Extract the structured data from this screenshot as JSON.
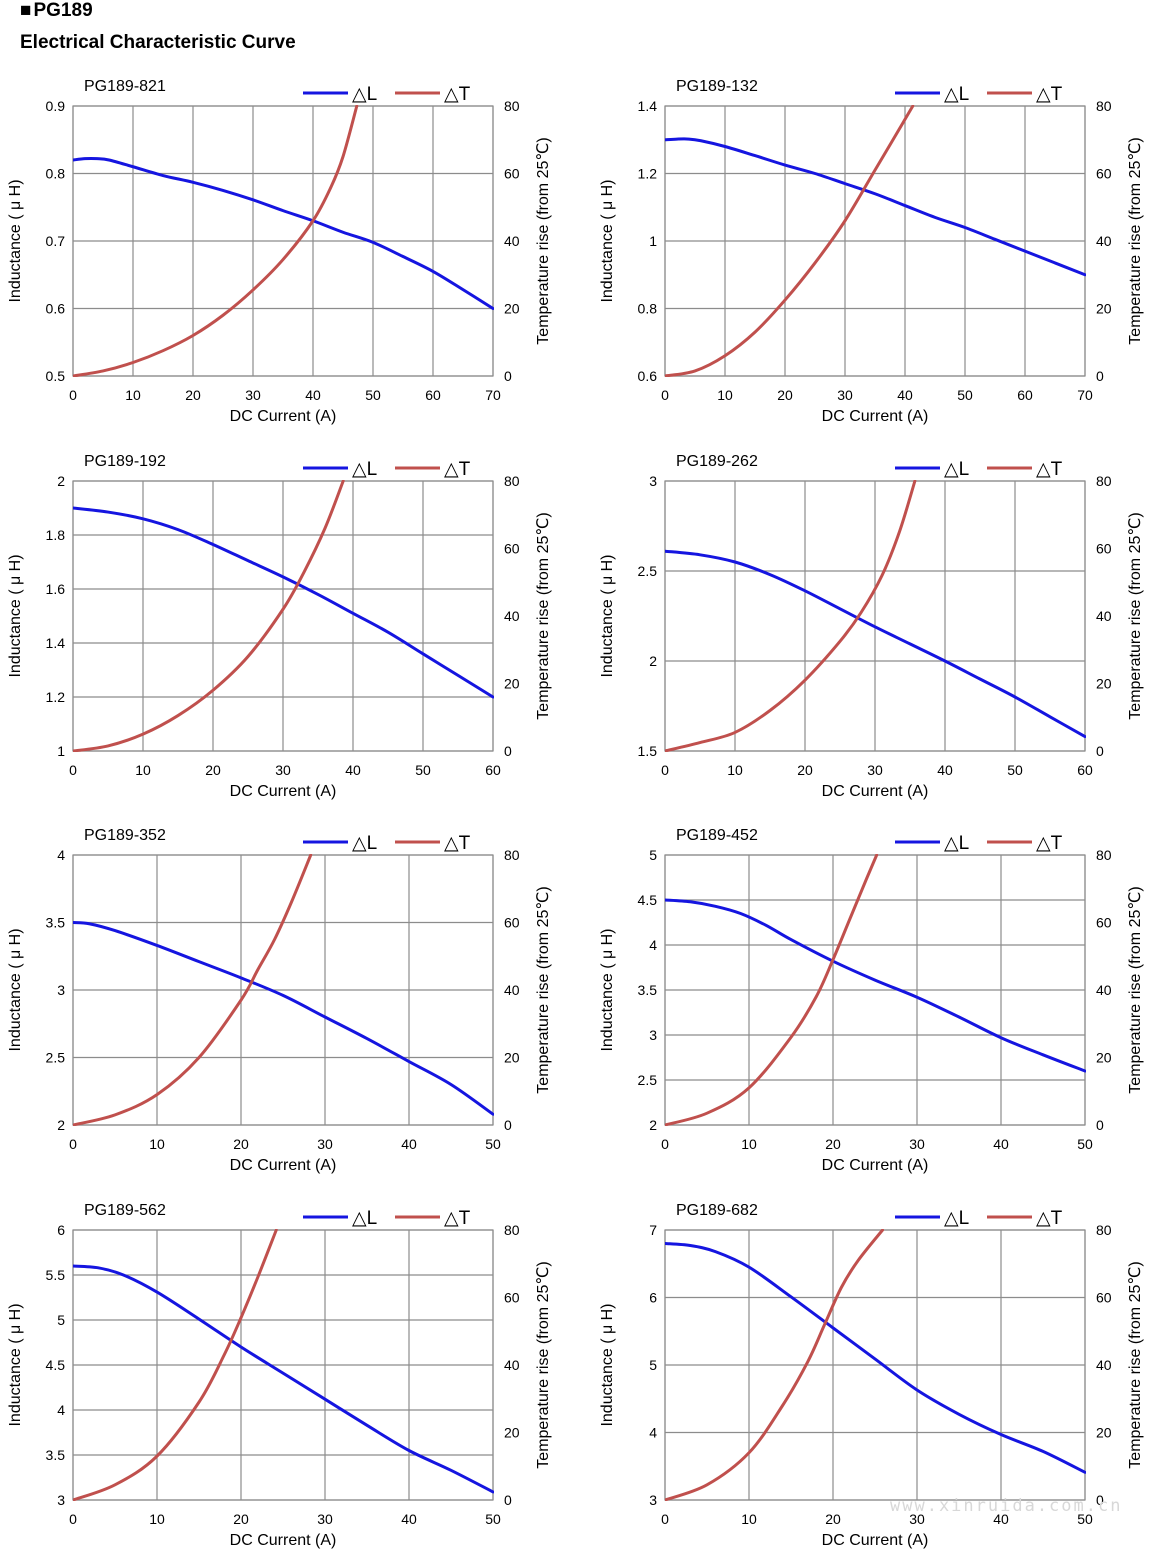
{
  "header": {
    "series_marker": "■",
    "series": "PG189",
    "subtitle": "Electrical Characteristic Curve"
  },
  "watermark": "www.xinruida.com.cn",
  "style": {
    "inductance_color": "#1515e0",
    "temperature_color": "#c0504d",
    "grid_color": "#8c8c8c"
  },
  "chart_data": [
    {
      "type": "line",
      "title": "PG189-821",
      "xlabel": "DC Current (A)",
      "ylabel": "Inductance ( μ H)",
      "y2label": "Temperature rise (from 25℃)",
      "legend": [
        "△L",
        "△T"
      ],
      "xlim": [
        0,
        70
      ],
      "xticks": [
        0,
        10,
        20,
        30,
        40,
        50,
        60,
        70
      ],
      "ylim": [
        0.5,
        0.9
      ],
      "yticks": [
        "0.5",
        "0.6",
        "0.7",
        "0.8",
        "0.9"
      ],
      "y2lim": [
        0,
        80
      ],
      "y2ticks": [
        "0",
        "20",
        "40",
        "60",
        "80"
      ],
      "series": [
        {
          "name": "△L",
          "axis": "left",
          "x": [
            0,
            2,
            4,
            6,
            10,
            15,
            20,
            25,
            30,
            35,
            40,
            45,
            50,
            55,
            60,
            65,
            70
          ],
          "y": [
            0.82,
            0.822,
            0.822,
            0.82,
            0.81,
            0.797,
            0.787,
            0.775,
            0.761,
            0.745,
            0.73,
            0.713,
            0.698,
            0.677,
            0.655,
            0.628,
            0.6
          ]
        },
        {
          "name": "△T",
          "axis": "right",
          "x": [
            0,
            5,
            10,
            15,
            20,
            25,
            30,
            35,
            40,
            43,
            45,
            47.3
          ],
          "y": [
            0,
            1.5,
            4,
            7.5,
            12,
            18,
            25.5,
            34.5,
            46,
            56,
            65,
            80
          ]
        }
      ]
    },
    {
      "type": "line",
      "title": "PG189-132",
      "xlabel": "DC Current (A)",
      "ylabel": "Inductance ( μ H)",
      "y2label": "Temperature rise (from 25℃)",
      "legend": [
        "△L",
        "△T"
      ],
      "xlim": [
        0,
        70
      ],
      "xticks": [
        0,
        10,
        20,
        30,
        40,
        50,
        60,
        70
      ],
      "ylim": [
        0.6,
        1.4
      ],
      "yticks": [
        "0.6",
        "0.8",
        "1",
        "1.2",
        "1.4"
      ],
      "y2lim": [
        0,
        80
      ],
      "y2ticks": [
        "0",
        "20",
        "40",
        "60",
        "80"
      ],
      "series": [
        {
          "name": "△L",
          "axis": "left",
          "x": [
            0,
            2,
            4,
            6,
            10,
            15,
            20,
            25,
            30,
            35,
            40,
            45,
            50,
            55,
            60,
            65,
            70
          ],
          "y": [
            1.3,
            1.302,
            1.302,
            1.297,
            1.28,
            1.253,
            1.225,
            1.2,
            1.17,
            1.14,
            1.105,
            1.07,
            1.04,
            1.005,
            0.97,
            0.935,
            0.9
          ]
        },
        {
          "name": "△T",
          "axis": "right",
          "x": [
            0,
            5,
            10,
            15,
            20,
            25,
            30,
            35,
            38,
            41.3
          ],
          "y": [
            0,
            1.5,
            6,
            13,
            22.5,
            33.5,
            46,
            61,
            70,
            80
          ]
        }
      ]
    },
    {
      "type": "line",
      "title": "PG189-192",
      "xlabel": "DC Current (A)",
      "ylabel": "Inductance ( μ H)",
      "y2label": "Temperature rise (from 25℃)",
      "legend": [
        "△L",
        "△T"
      ],
      "xlim": [
        0,
        60
      ],
      "xticks": [
        0,
        10,
        20,
        30,
        40,
        50,
        60
      ],
      "ylim": [
        1,
        2
      ],
      "yticks": [
        "1",
        "1.2",
        "1.4",
        "1.6",
        "1.8",
        "2"
      ],
      "y2lim": [
        0,
        80
      ],
      "y2ticks": [
        "0",
        "20",
        "40",
        "60",
        "80"
      ],
      "series": [
        {
          "name": "△L",
          "axis": "left",
          "x": [
            0,
            5,
            10,
            15,
            20,
            25,
            30,
            35,
            40,
            45,
            50,
            55,
            60
          ],
          "y": [
            1.9,
            1.885,
            1.86,
            1.82,
            1.765,
            1.705,
            1.645,
            1.58,
            1.51,
            1.44,
            1.36,
            1.28,
            1.2
          ]
        },
        {
          "name": "△T",
          "axis": "right",
          "x": [
            0,
            5,
            10,
            15,
            20,
            25,
            30,
            33,
            36,
            38.6
          ],
          "y": [
            0,
            1.5,
            5,
            10.5,
            18,
            28,
            42,
            53,
            66,
            80
          ]
        }
      ]
    },
    {
      "type": "line",
      "title": "PG189-262",
      "xlabel": "DC Current (A)",
      "ylabel": "Inductance ( μ H)",
      "y2label": "Temperature rise (from 25℃)",
      "legend": [
        "△L",
        "△T"
      ],
      "xlim": [
        0,
        60
      ],
      "xticks": [
        0,
        10,
        20,
        30,
        40,
        50,
        60
      ],
      "ylim": [
        1.5,
        3
      ],
      "yticks": [
        "1.5",
        "2",
        "2.5",
        "3"
      ],
      "y2lim": [
        0,
        80
      ],
      "y2ticks": [
        "0",
        "20",
        "40",
        "60",
        "80"
      ],
      "series": [
        {
          "name": "△L",
          "axis": "left",
          "x": [
            0,
            5,
            10,
            15,
            20,
            25,
            30,
            35,
            40,
            45,
            50,
            55,
            60
          ],
          "y": [
            2.61,
            2.59,
            2.55,
            2.48,
            2.39,
            2.29,
            2.19,
            2.095,
            2.0,
            1.9,
            1.8,
            1.69,
            1.58
          ]
        },
        {
          "name": "△T",
          "axis": "right",
          "x": [
            0,
            5,
            10,
            15,
            20,
            25,
            28,
            31,
            33.5,
            35.7
          ],
          "y": [
            0,
            2.5,
            5.5,
            12,
            21,
            32.5,
            41,
            52,
            65,
            80
          ]
        }
      ]
    },
    {
      "type": "line",
      "title": "PG189-352",
      "xlabel": "DC Current (A)",
      "ylabel": "Inductance ( μ H)",
      "y2label": "Temperature rise (from 25℃)",
      "legend": [
        "△L",
        "△T"
      ],
      "xlim": [
        0,
        50
      ],
      "xticks": [
        0,
        10,
        20,
        30,
        40,
        50
      ],
      "ylim": [
        2,
        4
      ],
      "yticks": [
        "2",
        "2.5",
        "3",
        "3.5",
        "4"
      ],
      "y2lim": [
        0,
        80
      ],
      "y2ticks": [
        "0",
        "20",
        "40",
        "60",
        "80"
      ],
      "series": [
        {
          "name": "△L",
          "axis": "left",
          "x": [
            0,
            2,
            5,
            10,
            15,
            20,
            25,
            30,
            35,
            40,
            45,
            50
          ],
          "y": [
            3.5,
            3.49,
            3.44,
            3.33,
            3.21,
            3.09,
            2.96,
            2.8,
            2.64,
            2.47,
            2.3,
            2.08
          ]
        },
        {
          "name": "△T",
          "axis": "right",
          "x": [
            0,
            5,
            10,
            15,
            20,
            22,
            24,
            26,
            28.3
          ],
          "y": [
            0,
            3,
            9,
            20,
            37,
            46,
            55,
            66,
            80
          ]
        }
      ]
    },
    {
      "type": "line",
      "title": "PG189-452",
      "xlabel": "DC Current (A)",
      "ylabel": "Inductance ( μ H)",
      "y2label": "Temperature rise (from 25℃)",
      "legend": [
        "△L",
        "△T"
      ],
      "xlim": [
        0,
        50
      ],
      "xticks": [
        0,
        10,
        20,
        30,
        40,
        50
      ],
      "ylim": [
        2,
        5
      ],
      "yticks": [
        "2",
        "2.5",
        "3",
        "3.5",
        "4",
        "4.5",
        "5"
      ],
      "y2lim": [
        0,
        80
      ],
      "y2ticks": [
        "0",
        "20",
        "40",
        "60",
        "80"
      ],
      "series": [
        {
          "name": "△L",
          "axis": "left",
          "x": [
            0,
            3,
            6,
            9,
            12,
            15,
            20,
            25,
            30,
            35,
            40,
            45,
            50
          ],
          "y": [
            4.5,
            4.48,
            4.43,
            4.35,
            4.22,
            4.06,
            3.82,
            3.61,
            3.42,
            3.2,
            2.97,
            2.78,
            2.6
          ]
        },
        {
          "name": "△T",
          "axis": "right",
          "x": [
            0,
            5,
            10,
            15,
            18,
            20,
            22,
            24,
            25.2
          ],
          "y": [
            0,
            3.5,
            11,
            26,
            38,
            49,
            61,
            73,
            80
          ]
        }
      ]
    },
    {
      "type": "line",
      "title": "PG189-562",
      "xlabel": "DC Current (A)",
      "ylabel": "Inductance ( μ H)",
      "y2label": "Temperature rise (from 25℃)",
      "legend": [
        "△L",
        "△T"
      ],
      "xlim": [
        0,
        50
      ],
      "xticks": [
        0,
        10,
        20,
        30,
        40,
        50
      ],
      "ylim": [
        3,
        6
      ],
      "yticks": [
        "3",
        "3.5",
        "4",
        "4.5",
        "5",
        "5.5",
        "6"
      ],
      "y2lim": [
        0,
        80
      ],
      "y2ticks": [
        "0",
        "20",
        "40",
        "60",
        "80"
      ],
      "series": [
        {
          "name": "△L",
          "axis": "left",
          "x": [
            0,
            3,
            6,
            10,
            15,
            20,
            25,
            30,
            35,
            40,
            45,
            50
          ],
          "y": [
            5.6,
            5.58,
            5.5,
            5.31,
            5.01,
            4.7,
            4.41,
            4.12,
            3.83,
            3.55,
            3.33,
            3.09
          ]
        },
        {
          "name": "△T",
          "axis": "right",
          "x": [
            0,
            5,
            10,
            15,
            18,
            20,
            22,
            24.2
          ],
          "y": [
            0,
            4.5,
            13,
            29,
            43,
            54,
            66,
            80
          ]
        }
      ]
    },
    {
      "type": "line",
      "title": "PG189-682",
      "xlabel": "DC Current (A)",
      "ylabel": "Inductance ( μ H)",
      "y2label": "Temperature rise (from 25℃)",
      "legend": [
        "△L",
        "△T"
      ],
      "xlim": [
        0,
        50
      ],
      "xticks": [
        0,
        10,
        20,
        30,
        40,
        50
      ],
      "ylim": [
        3,
        7
      ],
      "yticks": [
        "3",
        "4",
        "5",
        "6",
        "7"
      ],
      "y2lim": [
        0,
        80
      ],
      "y2ticks": [
        "0",
        "20",
        "40",
        "60",
        "80"
      ],
      "series": [
        {
          "name": "△L",
          "axis": "left",
          "x": [
            0,
            3,
            6,
            10,
            15,
            20,
            25,
            30,
            35,
            40,
            45,
            50
          ],
          "y": [
            6.8,
            6.77,
            6.68,
            6.45,
            6.01,
            5.55,
            5.09,
            4.63,
            4.27,
            3.97,
            3.72,
            3.41
          ]
        },
        {
          "name": "△T",
          "axis": "right",
          "x": [
            0,
            5,
            10,
            14,
            17,
            19,
            21,
            23,
            25.9
          ],
          "y": [
            0,
            4.5,
            14,
            28,
            41,
            52,
            63,
            71,
            80
          ]
        }
      ]
    }
  ]
}
